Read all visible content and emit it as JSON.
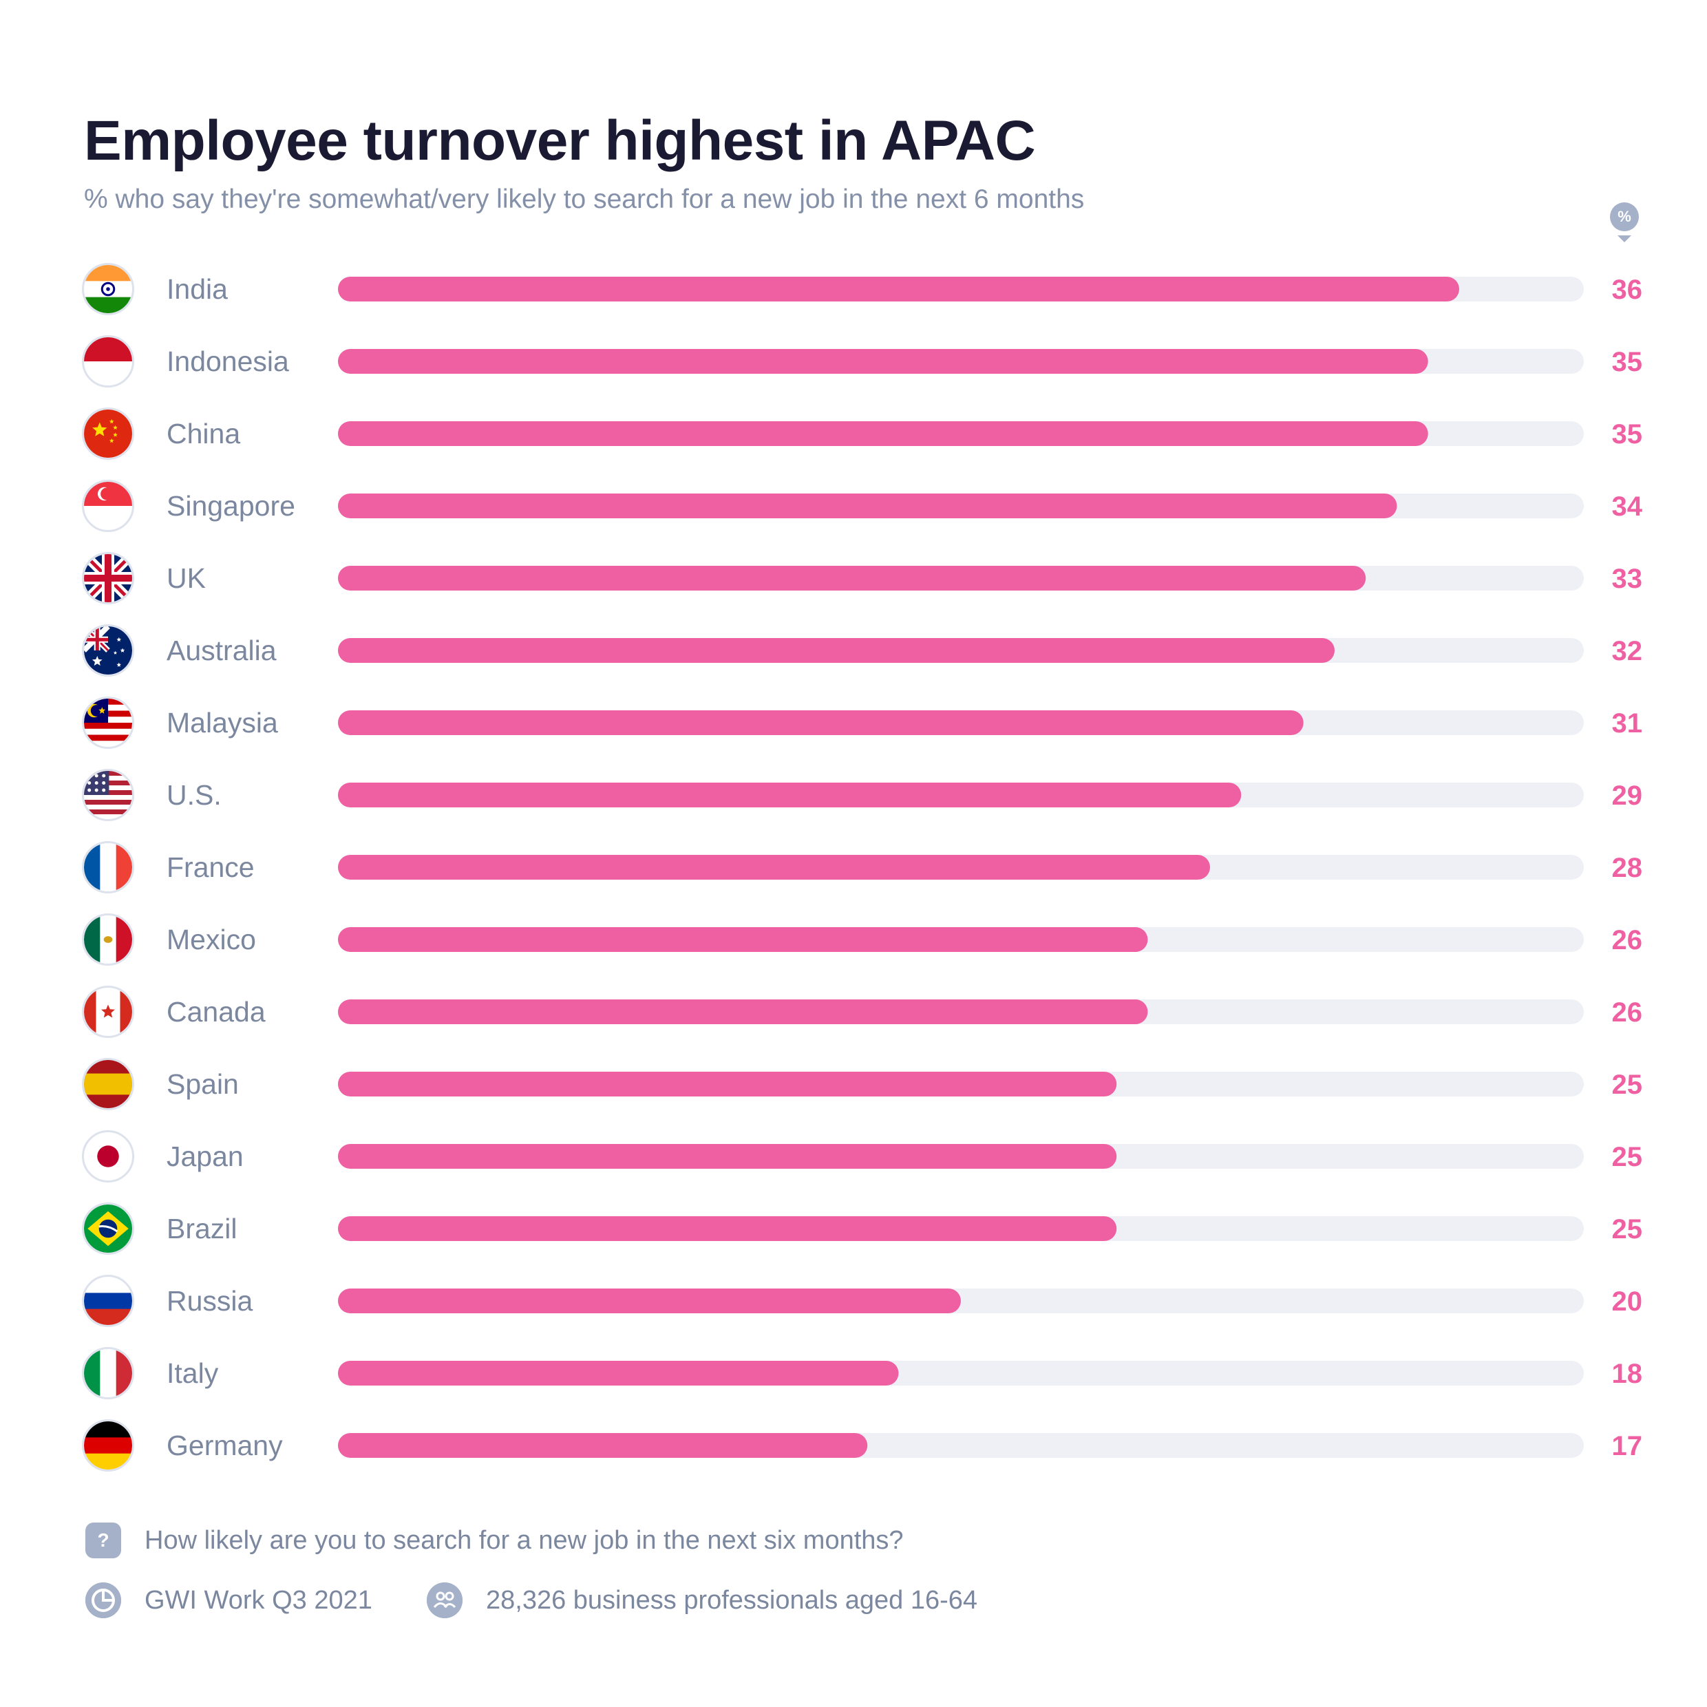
{
  "chart_data": {
    "type": "bar",
    "orientation": "horizontal",
    "title": "Employee turnover highest in APAC",
    "subtitle": "% who say they're somewhat/very likely to search for a new job in the next 6 months",
    "unit_badge": "%",
    "categories": [
      "India",
      "Indonesia",
      "China",
      "Singapore",
      "UK",
      "Australia",
      "Malaysia",
      "U.S.",
      "France",
      "Mexico",
      "Canada",
      "Spain",
      "Japan",
      "Brazil",
      "Russia",
      "Italy",
      "Germany"
    ],
    "values": [
      36,
      35,
      35,
      34,
      33,
      32,
      31,
      29,
      28,
      26,
      26,
      25,
      25,
      25,
      20,
      18,
      17
    ],
    "value_labels": [
      "36",
      "35",
      "35",
      "34",
      "33",
      "32",
      "31",
      "29",
      "28",
      "26",
      "26",
      "25",
      "25",
      "25",
      "20",
      "18",
      "17"
    ],
    "flag_icons": [
      "india-flag-icon",
      "indonesia-flag-icon",
      "china-flag-icon",
      "singapore-flag-icon",
      "uk-flag-icon",
      "australia-flag-icon",
      "malaysia-flag-icon",
      "us-flag-icon",
      "france-flag-icon",
      "mexico-flag-icon",
      "canada-flag-icon",
      "spain-flag-icon",
      "japan-flag-icon",
      "brazil-flag-icon",
      "russia-flag-icon",
      "italy-flag-icon",
      "germany-flag-icon"
    ],
    "xlim": [
      0,
      40
    ],
    "grid": false,
    "colors": {
      "bar": "#ef60a3",
      "track": "#eef0f5",
      "value_label": "#ef60a3",
      "category_label": "#7b879e",
      "title": "#1b1a33",
      "subtitle": "#8490a8"
    }
  },
  "footer": {
    "question_icon": "question-icon",
    "question_icon_glyph": "?",
    "question": "How likely are you to search for a new job in the next six months?",
    "source_icon": "gwi-logo-icon",
    "source": "GWI Work Q3 2021",
    "audience_icon": "people-icon",
    "audience": "28,326 business professionals aged 16-64"
  }
}
